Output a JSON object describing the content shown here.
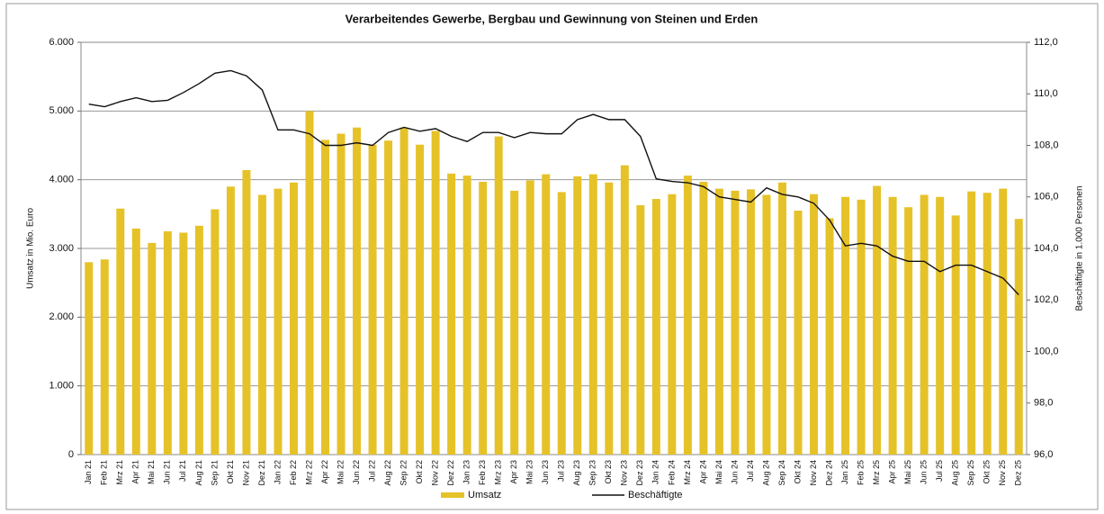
{
  "chart_data": {
    "type": "bar_line",
    "title": "Verarbeitendes Gewerbe, Bergbau und Gewinnung von Steinen und Erden",
    "y_label": "Umsatz in Mio. Euro",
    "y2_label": "Beschäftigte in 1.000 Personen",
    "categories": [
      "Jan 21",
      "Feb 21",
      "Mrz 21",
      "Apr 21",
      "Mai 21",
      "Jun 21",
      "Jul 21",
      "Aug 21",
      "Sep 21",
      "Okt 21",
      "Nov 21",
      "Dez 21",
      "Jan 22",
      "Feb 22",
      "Mrz 22",
      "Apr 22",
      "Mai 22",
      "Jun 22",
      "Jul 22",
      "Aug 22",
      "Sep 22",
      "Okt 22",
      "Nov 22",
      "Dez 22",
      "Jan 23",
      "Feb 23",
      "Mrz 23",
      "Apr 23",
      "Mai 23",
      "Jun 23",
      "Jul 23",
      "Aug 23",
      "Sep 23",
      "Okt 23",
      "Nov 23",
      "Dez 23",
      "Jan 24",
      "Feb 24",
      "Mrz 24",
      "Apr 24",
      "Mai 24",
      "Jun 24",
      "Jul 24",
      "Aug 24",
      "Sep 24",
      "Okt 24",
      "Nov 24",
      "Dez 24",
      "Jan 25",
      "Feb 25",
      "Mrz 25",
      "Apr 25",
      "Mai 25",
      "Jun 25",
      "Jul 25",
      "Aug 25",
      "Sep 25",
      "Okt 25",
      "Nov 25",
      "Dez 25"
    ],
    "series": [
      {
        "name": "Umsatz",
        "type": "bar",
        "color": "#e6c229",
        "values": [
          2800,
          2840,
          3580,
          3290,
          3080,
          3250,
          3230,
          3330,
          3570,
          3900,
          4140,
          3780,
          3870,
          3960,
          5000,
          4580,
          4670,
          4760,
          4510,
          4570,
          4760,
          4510,
          4710,
          4090,
          4060,
          3970,
          4630,
          3840,
          3990,
          4080,
          3820,
          4050,
          4080,
          3960,
          4210,
          3630,
          3720,
          3790,
          4060,
          3970,
          3870,
          3840,
          3860,
          3780,
          3960,
          3550,
          3790,
          3440,
          3750,
          3710,
          3910,
          3750,
          3600,
          3780,
          3750,
          3480,
          3830,
          3810,
          3870,
          3430
        ]
      },
      {
        "name": "Beschäftigte",
        "type": "line",
        "axis": "y2",
        "color": "#111111",
        "values": [
          109.6,
          109.5,
          109.7,
          109.85,
          109.7,
          109.75,
          110.05,
          110.4,
          110.8,
          110.9,
          110.7,
          110.15,
          108.6,
          108.6,
          108.45,
          108.0,
          108.0,
          108.1,
          108.0,
          108.5,
          108.7,
          108.55,
          108.65,
          108.35,
          108.15,
          108.5,
          108.5,
          108.3,
          108.5,
          108.45,
          108.45,
          109.0,
          109.2,
          109.0,
          109.0,
          108.35,
          106.7,
          106.6,
          106.55,
          106.4,
          106.0,
          105.9,
          105.8,
          106.35,
          106.1,
          106.0,
          105.75,
          105.1,
          104.1,
          104.2,
          104.1,
          103.7,
          103.5,
          103.5,
          103.1,
          103.35,
          103.35,
          103.1,
          102.85,
          102.2
        ]
      }
    ],
    "ylim": [
      0,
      6000
    ],
    "yticks": [
      0,
      {
        "value": 1000,
        "label": "1.000"
      },
      {
        "value": 2000,
        "label": "2.000"
      },
      {
        "value": 3000,
        "label": "3.000"
      },
      {
        "value": 4000,
        "label": "4.000"
      },
      {
        "value": 5000,
        "label": "5.000"
      },
      {
        "value": 6000,
        "label": "6.000"
      }
    ],
    "y2lim": [
      96,
      112
    ],
    "y2ticks": [
      {
        "value": 96,
        "label": "96,0"
      },
      {
        "value": 98,
        "label": "98,0"
      },
      {
        "value": 100,
        "label": "100,0"
      },
      {
        "value": 102,
        "label": "102,0"
      },
      {
        "value": 104,
        "label": "104,0"
      },
      {
        "value": 106,
        "label": "106,0"
      },
      {
        "value": 108,
        "label": "108,0"
      },
      {
        "value": 110,
        "label": "110,0"
      },
      {
        "value": 112,
        "label": "112,0"
      }
    ],
    "grid": true,
    "legend": "bottom"
  }
}
